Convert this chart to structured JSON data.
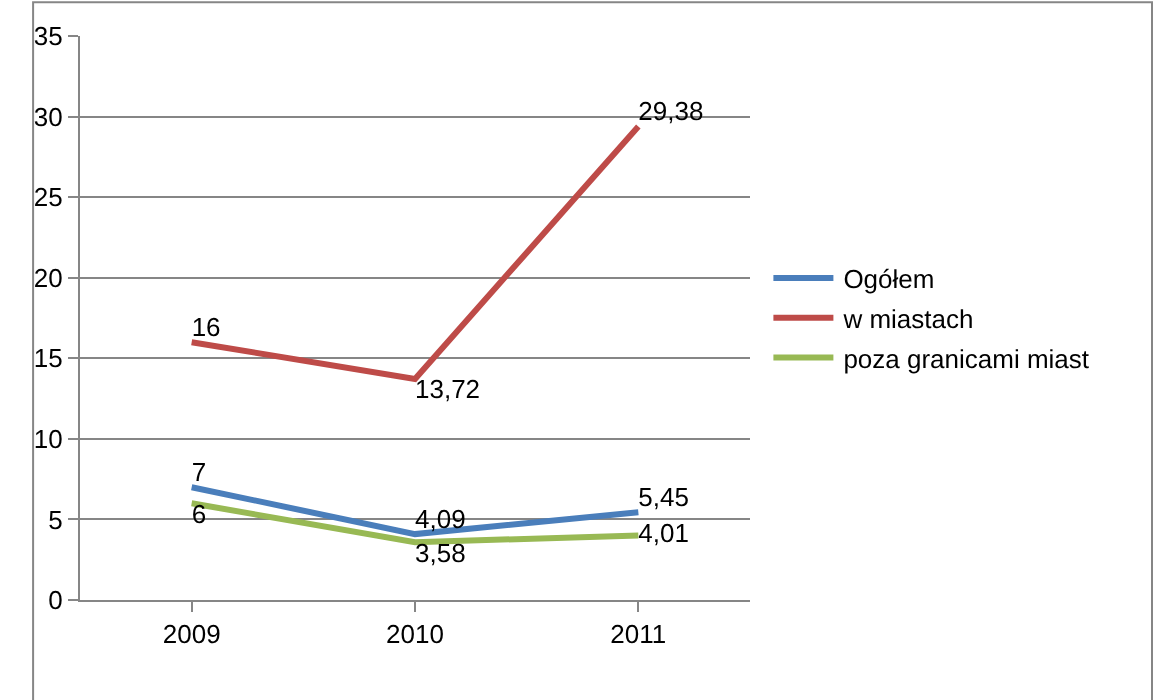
{
  "chart_data": {
    "type": "line",
    "categories": [
      "2009",
      "2010",
      "2011"
    ],
    "series": [
      {
        "name": "Ogółem",
        "color": "#4a7ebb",
        "values": [
          7,
          4.09,
          5.45
        ],
        "value_labels": [
          "7",
          "4,09",
          "5,45"
        ]
      },
      {
        "name": "w miastach",
        "color": "#be4b48",
        "values": [
          16,
          13.72,
          29.38
        ],
        "value_labels": [
          "16",
          "13,72",
          "29,38"
        ]
      },
      {
        "name": "poza granicami miast",
        "color": "#98b954",
        "values": [
          6,
          3.58,
          4.01
        ],
        "value_labels": [
          "6",
          "3,58",
          "4,01"
        ]
      }
    ],
    "ylim": [
      0,
      35
    ],
    "yticks": [
      0,
      5,
      10,
      15,
      20,
      25,
      30,
      35
    ],
    "grid": "y",
    "legend": "right",
    "marker": "none",
    "line_style": "solid"
  }
}
